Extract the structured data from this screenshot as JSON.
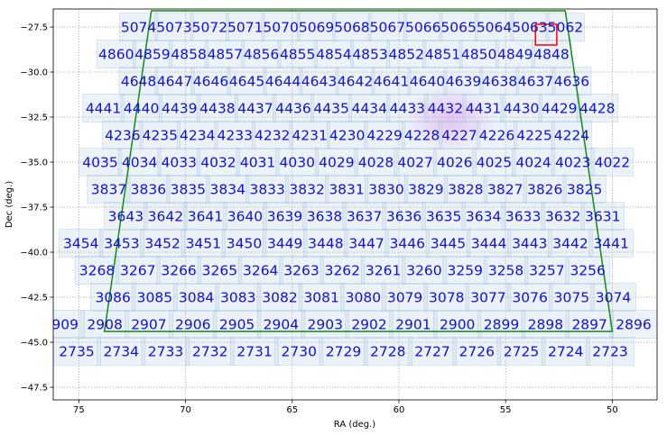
{
  "chart_data": {
    "type": "scatter",
    "xlabel": "RA (deg.)",
    "ylabel": "Dec (deg.)",
    "xlim": [
      76.2,
      47.9
    ],
    "ylim": [
      -48.2,
      -26.5
    ],
    "x_reversed": true,
    "grid": true,
    "grid_style": "dotted",
    "xticks": [
      75,
      70,
      65,
      60,
      55,
      50
    ],
    "yticks": [
      -27.5,
      -30.0,
      -32.5,
      -35.0,
      -37.5,
      -40.0,
      -42.5,
      -45.0,
      -47.5
    ],
    "xtick_labels": [
      "75",
      "70",
      "65",
      "60",
      "55",
      "50"
    ],
    "ytick_labels": [
      "−27.5",
      "−30.0",
      "−32.5",
      "−35.0",
      "−37.5",
      "−40.0",
      "−42.5",
      "−45.0",
      "−47.5"
    ],
    "colors": {
      "field_fill": "#b8cfe6",
      "field_edge": "#a9c1dc",
      "field_label": "#1010dd",
      "footprint": "#138a13",
      "highlight_box": "#ff0000",
      "blob": "#ee88ee",
      "grid": "#9a9a9a"
    },
    "field_rows": [
      {
        "dec": -27.5,
        "ra_start": 72.2,
        "ra_end": 52.2,
        "labels": [
          5074,
          5073,
          5072,
          5071,
          5070,
          5069,
          5068,
          5067,
          5066,
          5065,
          5064,
          5063,
          5062
        ]
      },
      {
        "dec": -29.0,
        "ra_start": 73.25,
        "ra_end": 52.85,
        "labels": [
          4860,
          4859,
          4858,
          4857,
          4856,
          4855,
          4854,
          4853,
          4852,
          4851,
          4850,
          4849,
          4848
        ]
      },
      {
        "dec": -30.5,
        "ra_start": 72.2,
        "ra_end": 51.9,
        "labels": [
          4648,
          4647,
          4646,
          4645,
          4644,
          4643,
          4642,
          4641,
          4640,
          4639,
          4638,
          4637,
          4636
        ]
      },
      {
        "dec": -32.0,
        "ra_start": 73.85,
        "ra_end": 50.7,
        "labels": [
          4441,
          4440,
          4439,
          4438,
          4437,
          4436,
          4435,
          4434,
          4433,
          4432,
          4431,
          4430,
          4429,
          4428
        ]
      },
      {
        "dec": -33.5,
        "ra_start": 72.95,
        "ra_end": 51.9,
        "labels": [
          4236,
          4235,
          4234,
          4233,
          4232,
          4231,
          4230,
          4229,
          4228,
          4227,
          4226,
          4225,
          4224
        ]
      },
      {
        "dec": -35.0,
        "ra_start": 74.0,
        "ra_end": 50.0,
        "labels": [
          4035,
          4034,
          4033,
          4032,
          4031,
          4030,
          4029,
          4028,
          4027,
          4026,
          4025,
          4024,
          4023,
          4022
        ]
      },
      {
        "dec": -36.5,
        "ra_start": 73.6,
        "ra_end": 51.3,
        "labels": [
          3837,
          3836,
          3835,
          3834,
          3833,
          3832,
          3831,
          3830,
          3829,
          3828,
          3827,
          3826,
          3825
        ]
      },
      {
        "dec": -38.0,
        "ra_start": 72.8,
        "ra_end": 50.45,
        "labels": [
          3643,
          3642,
          3641,
          3640,
          3639,
          3638,
          3637,
          3636,
          3635,
          3634,
          3633,
          3632,
          3631
        ]
      },
      {
        "dec": -39.5,
        "ra_start": 74.9,
        "ra_end": 50.05,
        "labels": [
          3454,
          3453,
          3452,
          3451,
          3450,
          3449,
          3448,
          3447,
          3446,
          3445,
          3444,
          3443,
          3442,
          3441
        ]
      },
      {
        "dec": -41.0,
        "ra_start": 74.15,
        "ra_end": 51.15,
        "labels": [
          3268,
          3267,
          3266,
          3265,
          3264,
          3263,
          3262,
          3261,
          3260,
          3259,
          3258,
          3257,
          3256
        ]
      },
      {
        "dec": -42.5,
        "ra_start": 73.4,
        "ra_end": 49.95,
        "labels": [
          3086,
          3085,
          3084,
          3083,
          3082,
          3081,
          3080,
          3079,
          3078,
          3077,
          3076,
          3075,
          3074
        ]
      },
      {
        "dec": -44.0,
        "ra_start": 75.85,
        "ra_end": 49.0,
        "labels": [
          2909,
          2908,
          2907,
          2906,
          2905,
          2904,
          2903,
          2902,
          2901,
          2900,
          2899,
          2898,
          2897,
          2896
        ]
      },
      {
        "dec": -45.5,
        "ra_start": 75.1,
        "ra_end": 50.1,
        "labels": [
          2735,
          2734,
          2733,
          2732,
          2731,
          2730,
          2729,
          2728,
          2727,
          2726,
          2725,
          2724,
          2723
        ]
      }
    ],
    "footprint": [
      [
        71.6,
        -26.6
      ],
      [
        52.2,
        -26.6
      ],
      [
        50.0,
        -44.4
      ],
      [
        73.8,
        -44.4
      ]
    ],
    "highlight_box": [
      [
        53.6,
        -27.35
      ],
      [
        52.6,
        -28.5
      ]
    ],
    "blob": {
      "center": [
        57.6,
        -32.6
      ],
      "radius": [
        2.1,
        1.8
      ]
    }
  }
}
